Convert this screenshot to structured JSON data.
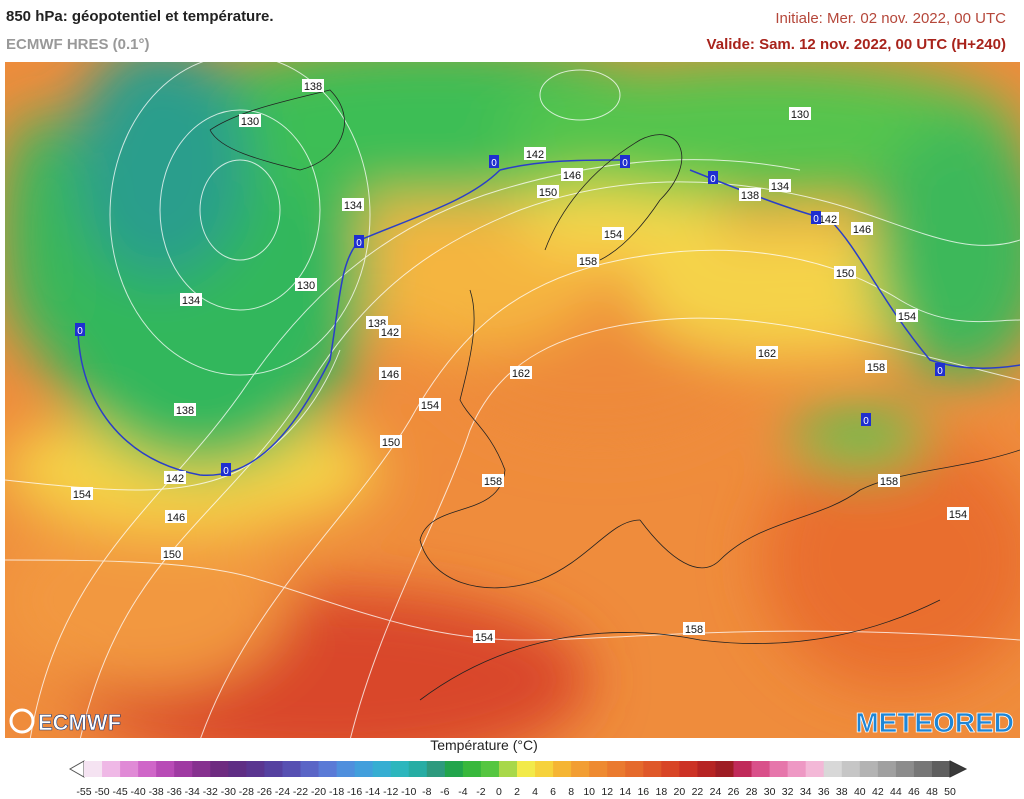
{
  "header": {
    "title": "850 hPa: géopotentiel et température.",
    "subtitle": "ECMWF HRES (0.1°)",
    "initial": "Initiale: Mer. 02 nov. 2022, 00 UTC",
    "valid": "Valide: Sam. 12 nov. 2022, 00 UTC (H+240)"
  },
  "map": {
    "contour_labels": [
      138,
      130,
      142,
      146,
      150,
      138,
      134,
      130,
      134,
      142,
      146,
      154,
      158,
      150,
      130,
      134,
      138,
      142,
      154,
      162,
      158,
      146,
      162,
      154,
      138,
      150,
      142,
      158,
      158,
      154,
      146,
      154,
      150,
      154,
      158
    ],
    "freezing_labels": [
      0,
      0,
      0,
      0,
      0,
      0,
      0,
      0,
      0
    ]
  },
  "logos": {
    "left": "ECMWF",
    "right": "METEORED"
  },
  "legend": {
    "title": "Température (°C)",
    "ticks": [
      -55,
      -50,
      -45,
      -40,
      -38,
      -36,
      -34,
      -32,
      -30,
      -28,
      -26,
      -24,
      -22,
      -20,
      -18,
      -16,
      -14,
      -12,
      -10,
      -8,
      -6,
      -4,
      -2,
      0,
      2,
      4,
      6,
      8,
      10,
      12,
      14,
      16,
      18,
      20,
      22,
      24,
      26,
      28,
      30,
      32,
      34,
      36,
      38,
      40,
      42,
      44,
      46,
      48,
      50
    ]
  }
}
